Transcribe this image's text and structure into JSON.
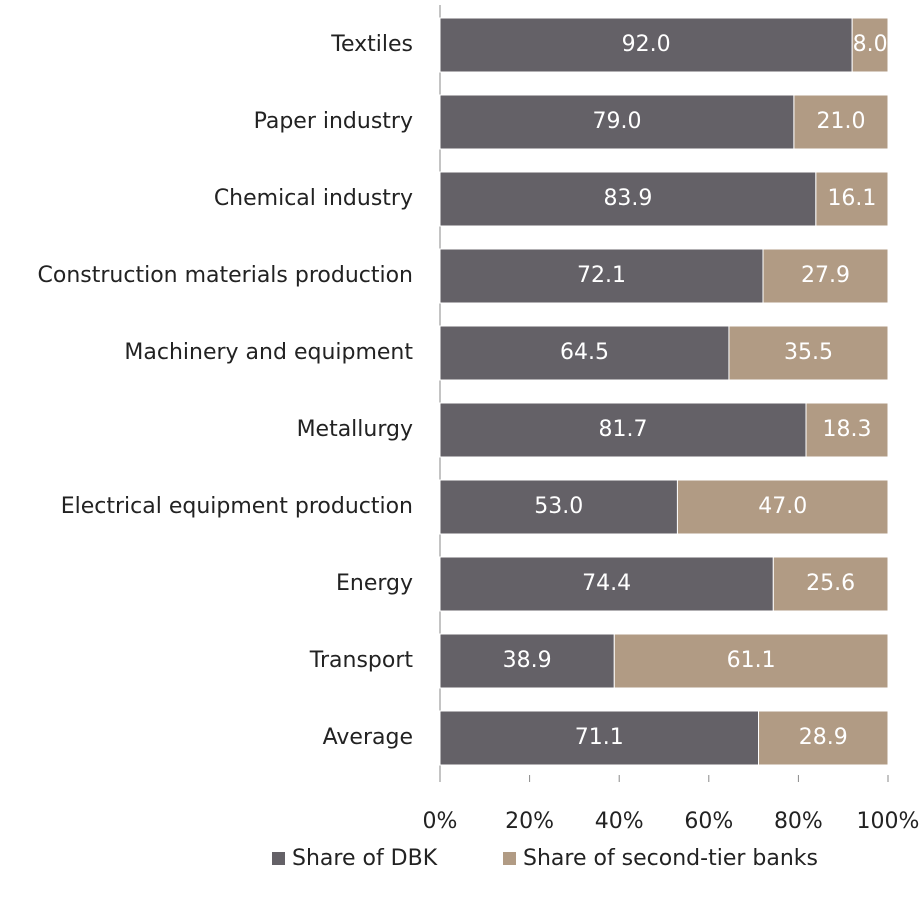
{
  "chart_data": {
    "type": "bar",
    "orientation": "horizontal",
    "stacked": true,
    "categories": [
      "Textiles",
      "Paper industry",
      "Chemical industry",
      "Construction materials production",
      "Machinery and equipment",
      "Metallurgy",
      "Electrical equipment production",
      "Energy",
      "Transport",
      "Average"
    ],
    "series": [
      {
        "name": "Share of DBK",
        "color": "#646167",
        "values": [
          92.0,
          79.0,
          83.9,
          72.1,
          64.5,
          81.7,
          53.0,
          74.4,
          38.9,
          71.1
        ],
        "value_labels": [
          "92.0",
          "79.0",
          "83.9",
          "72.1",
          "64.5",
          "81.7",
          "53.0",
          "74.4",
          "38.9",
          "71.1"
        ]
      },
      {
        "name": "Share of second-tier banks",
        "color": "#b19b84",
        "values": [
          8.0,
          21.0,
          16.1,
          27.9,
          35.5,
          18.3,
          47.0,
          25.6,
          61.1,
          28.9
        ],
        "value_labels": [
          "8.0",
          "21.0",
          "16.1",
          "27.9",
          "35.5",
          "18.3",
          "47.0",
          "25.6",
          "61.1",
          "28.9"
        ]
      }
    ],
    "xlim": [
      0,
      100
    ],
    "xticks": [
      {
        "value": 0,
        "label": "0%"
      },
      {
        "value": 20,
        "label": "20%"
      },
      {
        "value": 40,
        "label": "40%"
      },
      {
        "value": 60,
        "label": "60%"
      },
      {
        "value": 80,
        "label": "80%"
      },
      {
        "value": 100,
        "label": "100%"
      }
    ],
    "legend": "bottom"
  }
}
